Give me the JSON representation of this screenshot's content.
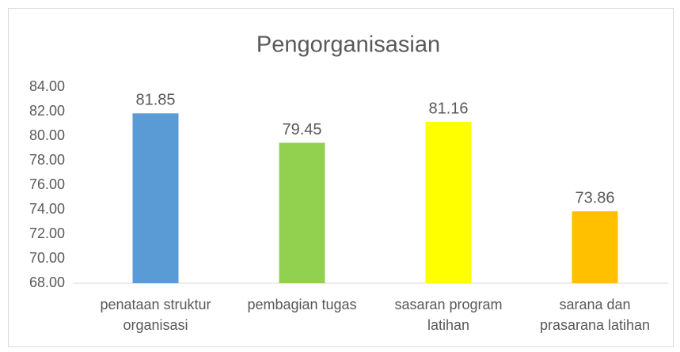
{
  "chart_data": {
    "type": "bar",
    "title": "Pengorganisasian",
    "categories": [
      "penataan struktur organisasi",
      "pembagian tugas",
      "sasaran program latihan",
      "sarana dan prasarana latihan"
    ],
    "values": [
      81.85,
      79.45,
      81.16,
      73.86
    ],
    "colors": [
      "#5b9bd5",
      "#92d050",
      "#ffff00",
      "#ffc000"
    ],
    "ylim": [
      68,
      84
    ],
    "yticks": [
      {
        "value": 68,
        "label": "68.00"
      },
      {
        "value": 70,
        "label": "70.00"
      },
      {
        "value": 72,
        "label": "72.00"
      },
      {
        "value": 74,
        "label": "74.00"
      },
      {
        "value": 76,
        "label": "76.00"
      },
      {
        "value": 78,
        "label": "78.00"
      },
      {
        "value": 80,
        "label": "80.00"
      },
      {
        "value": 82,
        "label": "82.00"
      },
      {
        "value": 84,
        "label": "84.00"
      }
    ],
    "grid": false
  }
}
